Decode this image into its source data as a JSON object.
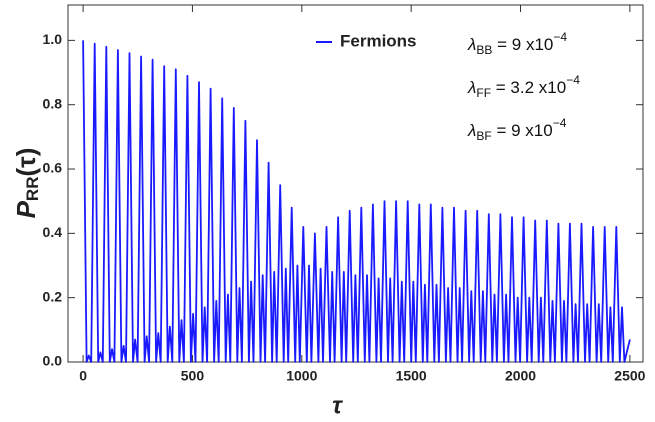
{
  "chart_data": {
    "type": "line",
    "x_label": "τ",
    "y_label": {
      "main": "P",
      "sub": "RR",
      "rest": "(τ)"
    },
    "annotations": [
      {
        "symbol": "λ",
        "sub": "BB",
        "text": " = 9 x10",
        "sup": "−4"
      },
      {
        "symbol": "λ",
        "sub": "FF",
        "text": " = 3.2 x10",
        "sup": "−4"
      },
      {
        "symbol": "λ",
        "sub": "BF",
        "text": " = 9 x10",
        "sup": "−4"
      }
    ],
    "xlim": [
      -69,
      2560
    ],
    "ylim": [
      0,
      1.11
    ],
    "xticks": [
      0,
      500,
      1000,
      1500,
      2000,
      2500
    ],
    "yticks": [
      {
        "value": 0,
        "label": "0.0"
      },
      0.2,
      0.4,
      0.6,
      0.8,
      {
        "value": 1,
        "label": "1.0"
      }
    ],
    "legend": "top",
    "x": [
      0,
      16,
      26,
      37,
      53,
      69,
      79,
      90,
      106,
      122,
      132,
      143,
      159,
      175,
      185,
      196,
      212,
      228,
      238,
      249,
      265,
      281,
      291,
      302,
      318,
      334,
      344,
      355,
      371,
      387,
      397,
      408,
      424,
      440,
      450,
      461,
      477,
      493,
      503,
      514,
      530,
      546,
      556,
      567,
      583,
      599,
      609,
      620,
      636,
      652,
      662,
      673,
      689,
      705,
      715,
      726,
      742,
      758,
      768,
      779,
      795,
      811,
      821,
      832,
      848,
      864,
      874,
      885,
      901,
      917,
      927,
      938,
      954,
      970,
      980,
      991,
      1007,
      1023,
      1033,
      1044,
      1060,
      1076,
      1086,
      1097,
      1113,
      1129,
      1139,
      1150,
      1166,
      1182,
      1192,
      1203,
      1219,
      1235,
      1245,
      1256,
      1272,
      1288,
      1298,
      1309,
      1325,
      1341,
      1351,
      1362,
      1378,
      1394,
      1404,
      1415,
      1431,
      1447,
      1457,
      1468,
      1484,
      1500,
      1510,
      1521,
      1537,
      1553,
      1563,
      1574,
      1590,
      1606,
      1616,
      1627,
      1643,
      1659,
      1669,
      1680,
      1696,
      1712,
      1722,
      1733,
      1749,
      1765,
      1775,
      1786,
      1802,
      1818,
      1828,
      1839,
      1855,
      1871,
      1881,
      1892,
      1908,
      1924,
      1934,
      1945,
      1961,
      1977,
      1987,
      1998,
      2014,
      2030,
      2040,
      2051,
      2067,
      2083,
      2093,
      2104,
      2120,
      2136,
      2146,
      2157,
      2173,
      2189,
      2199,
      2210,
      2226,
      2242,
      2252,
      2263,
      2279,
      2295,
      2305,
      2316,
      2332,
      2348,
      2358,
      2369,
      2385,
      2401,
      2411,
      2422,
      2438,
      2454,
      2464,
      2475,
      2500
    ],
    "series": [
      {
        "name": "Fermions",
        "color": "#1a1aff",
        "values": [
          1.0,
          0,
          0.02,
          0,
          0.99,
          0,
          0.03,
          0,
          0.98,
          0,
          0.04,
          0,
          0.97,
          0,
          0.05,
          0,
          0.96,
          0,
          0.07,
          0,
          0.95,
          0,
          0.08,
          0,
          0.94,
          0,
          0.09,
          0,
          0.92,
          0,
          0.11,
          0,
          0.91,
          0,
          0.13,
          0,
          0.89,
          0,
          0.15,
          0,
          0.87,
          0,
          0.17,
          0,
          0.85,
          0,
          0.19,
          0,
          0.82,
          0,
          0.21,
          0,
          0.79,
          0,
          0.23,
          0,
          0.75,
          0,
          0.25,
          0,
          0.69,
          0,
          0.27,
          0,
          0.62,
          0,
          0.28,
          0,
          0.55,
          0,
          0.29,
          0,
          0.48,
          0,
          0.3,
          0,
          0.42,
          0,
          0.3,
          0,
          0.4,
          0,
          0.29,
          0,
          0.42,
          0,
          0.28,
          0,
          0.45,
          0,
          0.28,
          0,
          0.47,
          0,
          0.27,
          0,
          0.48,
          0,
          0.27,
          0,
          0.49,
          0,
          0.26,
          0,
          0.5,
          0,
          0.26,
          0,
          0.5,
          0,
          0.25,
          0,
          0.5,
          0,
          0.25,
          0,
          0.49,
          0,
          0.24,
          0,
          0.49,
          0,
          0.24,
          0,
          0.48,
          0,
          0.23,
          0,
          0.48,
          0,
          0.23,
          0,
          0.47,
          0,
          0.22,
          0,
          0.47,
          0,
          0.22,
          0,
          0.46,
          0,
          0.21,
          0,
          0.46,
          0,
          0.21,
          0,
          0.45,
          0,
          0.2,
          0,
          0.45,
          0,
          0.2,
          0,
          0.44,
          0,
          0.2,
          0,
          0.44,
          0,
          0.19,
          0,
          0.43,
          0,
          0.19,
          0,
          0.43,
          0,
          0.18,
          0,
          0.43,
          0,
          0.18,
          0,
          0.42,
          0,
          0.18,
          0,
          0.42,
          0,
          0.17,
          0,
          0.42,
          0,
          0.17,
          0,
          0.07
        ]
      }
    ]
  }
}
